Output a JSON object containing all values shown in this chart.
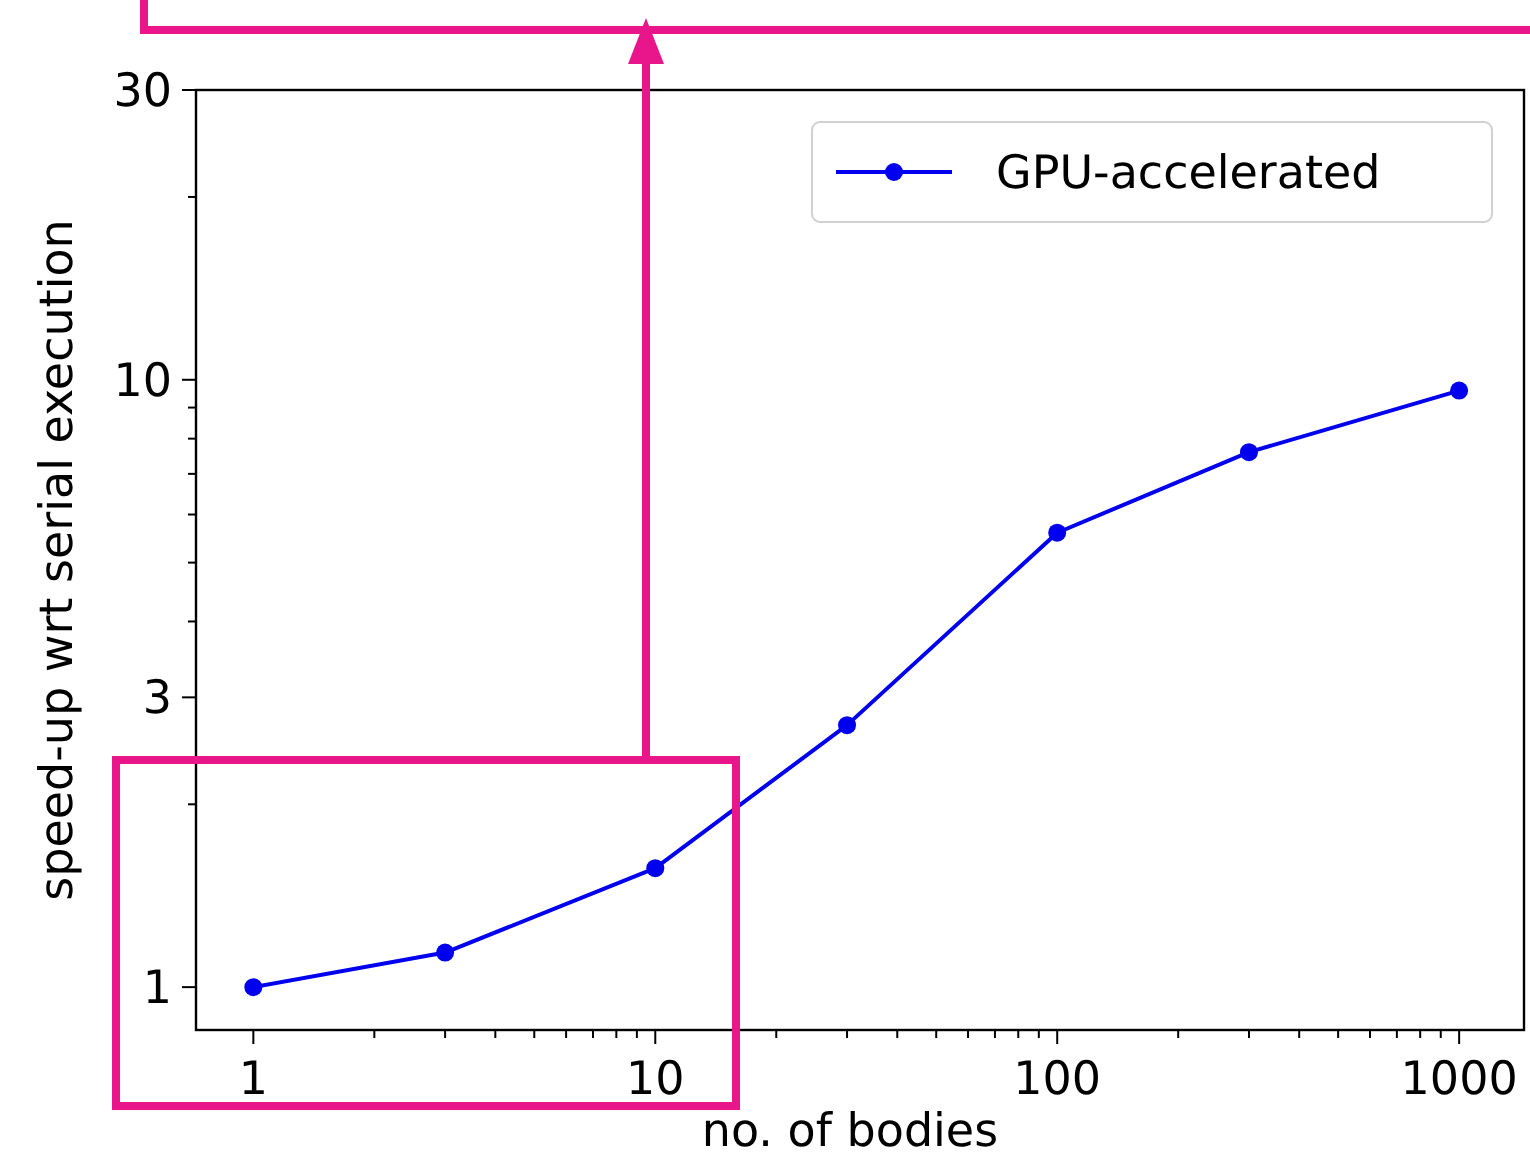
{
  "chart_data": {
    "type": "line",
    "xlabel": "no. of bodies",
    "ylabel": "speed-up wrt serial execution",
    "x": [
      1,
      3,
      10,
      30,
      100,
      300,
      1000
    ],
    "series": [
      {
        "name": "GPU-accelerated",
        "color": "#0000ee",
        "values": [
          1.0,
          1.14,
          1.57,
          2.7,
          5.6,
          7.6,
          9.6
        ]
      }
    ],
    "log": "xy",
    "xlim": [
      0.72,
      1450
    ],
    "ylim": [
      0.85,
      30
    ],
    "xticks": [
      1,
      {
        "value": 2,
        "label": null
      },
      {
        "value": 3,
        "label": null
      },
      {
        "value": 4,
        "label": null
      },
      {
        "value": 5,
        "label": null
      },
      {
        "value": 6,
        "label": null
      },
      {
        "value": 7,
        "label": null
      },
      {
        "value": 8,
        "label": null
      },
      {
        "value": 9,
        "label": null
      },
      10,
      {
        "value": 20,
        "label": null
      },
      {
        "value": 30,
        "label": null
      },
      {
        "value": 40,
        "label": null
      },
      {
        "value": 50,
        "label": null
      },
      {
        "value": 60,
        "label": null
      },
      {
        "value": 70,
        "label": null
      },
      {
        "value": 80,
        "label": null
      },
      {
        "value": 90,
        "label": null
      },
      100,
      {
        "value": 200,
        "label": null
      },
      {
        "value": 300,
        "label": null
      },
      {
        "value": 400,
        "label": null
      },
      {
        "value": 500,
        "label": null
      },
      {
        "value": 600,
        "label": null
      },
      {
        "value": 700,
        "label": null
      },
      {
        "value": 800,
        "label": null
      },
      {
        "value": 900,
        "label": null
      },
      1000
    ],
    "yticks": [
      1,
      {
        "value": 2,
        "label": null
      },
      3,
      {
        "value": 4,
        "label": null
      },
      {
        "value": 5,
        "label": null
      },
      {
        "value": 6,
        "label": null
      },
      {
        "value": 7,
        "label": null
      },
      {
        "value": 8,
        "label": null
      },
      {
        "value": 9,
        "label": null
      },
      10,
      {
        "value": 20,
        "label": null
      },
      30
    ],
    "marker": "circle",
    "line_style": "solid",
    "legend": "top right",
    "grid": false
  }
}
